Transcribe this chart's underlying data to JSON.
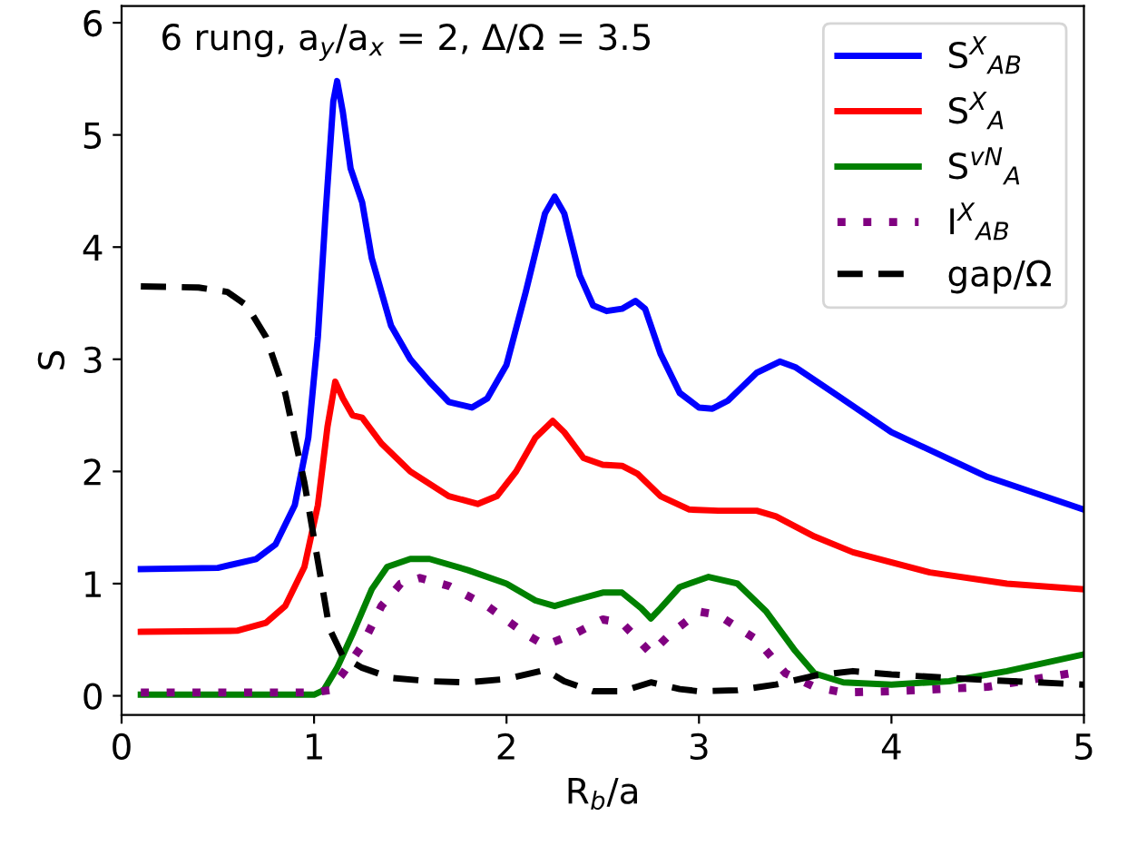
{
  "chart_data": {
    "type": "line",
    "xlabel": "R$_{b}$/a",
    "ylabel": "S",
    "annotations": [
      "6 rung, a$_{y}$/a$_{x}$ = 2, Δ/Ω = 3.5"
    ],
    "xlim": [
      0,
      5
    ],
    "ylim": [
      -0.17,
      6.15
    ],
    "xticks": [
      0,
      1,
      2,
      3,
      4,
      5
    ],
    "yticks": [
      0,
      1,
      2,
      3,
      4,
      5,
      6
    ],
    "grid": false,
    "legend": "top right",
    "series": [
      {
        "name": "S$^{X}$$_{AB}$",
        "color": "#0000ff",
        "line_style": "solid",
        "x": [
          0.1,
          0.5,
          0.7,
          0.8,
          0.9,
          0.97,
          1.02,
          1.06,
          1.1,
          1.12,
          1.15,
          1.19,
          1.25,
          1.3,
          1.4,
          1.5,
          1.6,
          1.7,
          1.82,
          1.9,
          2.0,
          2.1,
          2.2,
          2.25,
          2.3,
          2.38,
          2.45,
          2.52,
          2.6,
          2.67,
          2.72,
          2.8,
          2.9,
          3.0,
          3.07,
          3.15,
          3.3,
          3.42,
          3.5,
          3.7,
          4.0,
          4.5,
          5.0
        ],
        "values": [
          1.13,
          1.14,
          1.22,
          1.35,
          1.7,
          2.3,
          3.2,
          4.3,
          5.3,
          5.48,
          5.2,
          4.7,
          4.4,
          3.9,
          3.3,
          3.0,
          2.8,
          2.62,
          2.57,
          2.65,
          2.95,
          3.6,
          4.3,
          4.45,
          4.3,
          3.75,
          3.48,
          3.43,
          3.45,
          3.52,
          3.45,
          3.05,
          2.7,
          2.57,
          2.56,
          2.63,
          2.88,
          2.98,
          2.93,
          2.7,
          2.35,
          1.95,
          1.66
        ]
      },
      {
        "name": "S$^{X}$$_{A}$",
        "color": "#ff0000",
        "line_style": "solid",
        "x": [
          0.1,
          0.6,
          0.75,
          0.85,
          0.95,
          1.02,
          1.07,
          1.11,
          1.15,
          1.2,
          1.25,
          1.35,
          1.5,
          1.7,
          1.85,
          1.95,
          2.05,
          2.15,
          2.24,
          2.3,
          2.4,
          2.5,
          2.6,
          2.68,
          2.8,
          2.95,
          3.1,
          3.3,
          3.4,
          3.6,
          3.8,
          4.2,
          4.6,
          5.0
        ],
        "values": [
          0.57,
          0.58,
          0.65,
          0.8,
          1.15,
          1.7,
          2.4,
          2.8,
          2.65,
          2.5,
          2.48,
          2.25,
          2.0,
          1.78,
          1.71,
          1.78,
          2.0,
          2.3,
          2.45,
          2.35,
          2.12,
          2.06,
          2.05,
          1.98,
          1.78,
          1.66,
          1.65,
          1.65,
          1.6,
          1.42,
          1.28,
          1.1,
          1.0,
          0.95
        ]
      },
      {
        "name": "S$^{vN}$$_{A}$",
        "color": "#008000",
        "line_style": "solid",
        "x": [
          0.1,
          1.0,
          1.05,
          1.12,
          1.2,
          1.3,
          1.38,
          1.5,
          1.6,
          1.8,
          2.0,
          2.15,
          2.25,
          2.35,
          2.5,
          2.6,
          2.7,
          2.75,
          2.8,
          2.9,
          3.05,
          3.2,
          3.35,
          3.5,
          3.6,
          3.75,
          4.0,
          4.3,
          4.6,
          5.0
        ],
        "values": [
          0.01,
          0.01,
          0.05,
          0.25,
          0.55,
          0.95,
          1.15,
          1.22,
          1.22,
          1.12,
          1.0,
          0.85,
          0.8,
          0.85,
          0.92,
          0.92,
          0.78,
          0.69,
          0.78,
          0.97,
          1.06,
          1.0,
          0.75,
          0.4,
          0.2,
          0.12,
          0.1,
          0.13,
          0.22,
          0.37
        ]
      },
      {
        "name": "I$^{X}$$_{AB}$",
        "color": "#800080",
        "line_style": "dotted",
        "x": [
          0.1,
          1.0,
          1.08,
          1.15,
          1.25,
          1.35,
          1.45,
          1.55,
          1.7,
          1.9,
          2.1,
          2.2,
          2.35,
          2.5,
          2.6,
          2.75,
          2.85,
          3.0,
          3.1,
          3.3,
          3.45,
          3.6,
          3.75,
          4.0,
          4.5,
          5.0
        ],
        "values": [
          0.03,
          0.03,
          0.05,
          0.2,
          0.45,
          0.8,
          1.0,
          1.05,
          0.98,
          0.8,
          0.55,
          0.45,
          0.55,
          0.68,
          0.65,
          0.38,
          0.55,
          0.75,
          0.72,
          0.5,
          0.2,
          0.08,
          0.03,
          0.04,
          0.08,
          0.22
        ]
      },
      {
        "name": "gap/Ω",
        "color": "#000000",
        "line_style": "dashed",
        "x": [
          0.1,
          0.4,
          0.55,
          0.65,
          0.75,
          0.85,
          0.95,
          1.02,
          1.08,
          1.15,
          1.25,
          1.4,
          1.6,
          1.8,
          2.0,
          2.2,
          2.3,
          2.45,
          2.6,
          2.75,
          2.9,
          3.0,
          3.2,
          3.4,
          3.6,
          3.8,
          4.0,
          4.5,
          5.0
        ],
        "values": [
          3.65,
          3.64,
          3.6,
          3.48,
          3.2,
          2.7,
          1.9,
          1.2,
          0.6,
          0.35,
          0.25,
          0.16,
          0.13,
          0.12,
          0.15,
          0.23,
          0.13,
          0.04,
          0.04,
          0.12,
          0.06,
          0.04,
          0.05,
          0.1,
          0.18,
          0.22,
          0.19,
          0.14,
          0.1
        ]
      }
    ]
  }
}
